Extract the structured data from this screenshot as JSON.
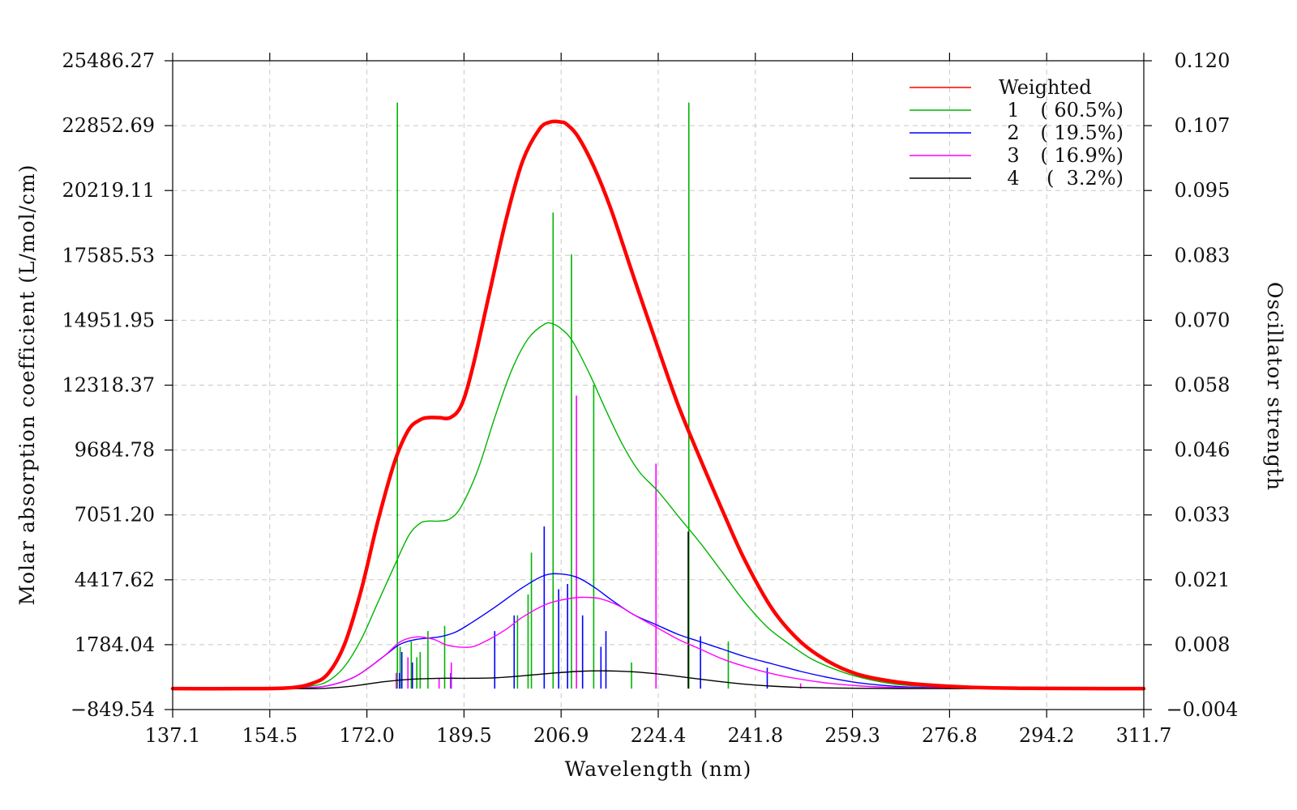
{
  "chart_data": {
    "type": "line",
    "xlabel": "Wavelength (nm)",
    "ylabel": "Molar absorption coefficient (L/mol/cm)",
    "y2label": "Oscillator strength",
    "xlim": [
      137.1,
      311.7
    ],
    "ylim": [
      -849.54,
      25486.27
    ],
    "y2lim": [
      -0.004,
      0.12
    ],
    "xticks": [
      "137.1",
      "154.5",
      "172.0",
      "189.5",
      "206.9",
      "224.4",
      "241.8",
      "259.3",
      "276.8",
      "294.2",
      "311.7"
    ],
    "yticks": [
      "-849.54",
      "1784.04",
      "4417.62",
      "7051.20",
      "9684.78",
      "12318.37",
      "14951.95",
      "17585.53",
      "20219.11",
      "22852.69",
      "25486.27"
    ],
    "y2ticks": [
      "-0.004",
      "0.008",
      "0.021",
      "0.033",
      "0.046",
      "0.058",
      "0.070",
      "0.083",
      "0.095",
      "0.107",
      "0.120"
    ],
    "grid": true,
    "legend_position": "top-right",
    "legend": [
      {
        "name": "Weighted",
        "pct": "",
        "color": "#ff0000"
      },
      {
        "name": "1",
        "pct": "( 60.5%)",
        "color": "#00b400"
      },
      {
        "name": "2",
        "pct": "( 19.5%)",
        "color": "#0000ff"
      },
      {
        "name": "3",
        "pct": "( 16.9%)",
        "color": "#ff00ff"
      },
      {
        "name": "4",
        "pct": "(  3.2%)",
        "color": "#000000"
      }
    ],
    "series": [
      {
        "name": "Weighted",
        "color": "#ff0000",
        "x": [
          137.1,
          150,
          158,
          162,
          165,
          168,
          171,
          174,
          177,
          179.5,
          181.5,
          183,
          185,
          187,
          189,
          191,
          194,
          197,
          200,
          203,
          205,
          206.9,
          208,
          210,
          213,
          216,
          220,
          224.4,
          228,
          232,
          236,
          240,
          245,
          250,
          255,
          260,
          265,
          270,
          280,
          290,
          300,
          311.7
        ],
        "values": [
          0,
          0,
          30,
          200,
          600,
          1800,
          4000,
          6800,
          9200,
          10500,
          10900,
          11000,
          11000,
          11000,
          11500,
          13000,
          16000,
          19000,
          21400,
          22700,
          23000,
          23000,
          22900,
          22400,
          21100,
          19400,
          16700,
          13800,
          11500,
          9300,
          7200,
          5200,
          3200,
          1900,
          1100,
          600,
          350,
          200,
          60,
          15,
          5,
          0
        ]
      },
      {
        "name": "1",
        "color": "#00b400",
        "x": [
          137.1,
          150,
          158,
          162,
          165,
          168,
          171,
          174,
          177,
          179.5,
          181.5,
          183,
          185,
          187,
          189,
          192,
          195,
          198,
          201,
          204,
          205.5,
          207,
          209,
          212,
          215,
          218,
          221,
          224.4,
          228,
          232,
          236,
          240,
          244,
          248,
          252,
          256,
          260,
          265,
          270,
          280,
          290,
          300,
          311.7
        ],
        "values": [
          0,
          0,
          15,
          100,
          300,
          900,
          2000,
          3500,
          5000,
          6200,
          6700,
          6800,
          6800,
          6900,
          7400,
          8900,
          11000,
          12900,
          14200,
          14800,
          14800,
          14600,
          14100,
          12800,
          11300,
          9900,
          8800,
          8000,
          7000,
          5900,
          4700,
          3500,
          2500,
          1800,
          1200,
          800,
          500,
          250,
          120,
          40,
          10,
          3,
          0
        ]
      },
      {
        "name": "2",
        "color": "#0000ff",
        "x": [
          137.1,
          155,
          160,
          165,
          170,
          175,
          178,
          181,
          185,
          188,
          191,
          195,
          200,
          204,
          207,
          210,
          213,
          216,
          220,
          224,
          228,
          232,
          236,
          240,
          245,
          250,
          255,
          260,
          265,
          270,
          280,
          290,
          300,
          311.7
        ],
        "values": [
          0,
          0,
          20,
          120,
          500,
          1300,
          1800,
          2000,
          2100,
          2300,
          2700,
          3300,
          4100,
          4600,
          4650,
          4500,
          4100,
          3600,
          3000,
          2600,
          2200,
          1900,
          1600,
          1300,
          1000,
          700,
          450,
          250,
          130,
          60,
          20,
          5,
          0,
          0
        ]
      },
      {
        "name": "3",
        "color": "#ff00ff",
        "x": [
          137.1,
          155,
          160,
          165,
          170,
          175,
          178,
          181,
          184,
          186,
          188,
          191,
          194,
          197,
          200,
          204,
          207,
          210,
          212,
          214,
          217,
          220,
          224,
          228,
          232,
          236,
          240,
          245,
          250,
          255,
          260,
          265,
          270,
          280,
          290,
          300,
          311.7
        ],
        "values": [
          0,
          0,
          20,
          120,
          500,
          1300,
          1900,
          2100,
          2000,
          1800,
          1700,
          1700,
          2000,
          2400,
          2900,
          3400,
          3600,
          3700,
          3700,
          3650,
          3400,
          3000,
          2500,
          2000,
          1600,
          1200,
          900,
          600,
          380,
          220,
          120,
          60,
          30,
          10,
          3,
          0,
          0
        ]
      },
      {
        "name": "4",
        "color": "#000000",
        "x": [
          137.1,
          160,
          165,
          170,
          175,
          180,
          185,
          190,
          195,
          200,
          205,
          210,
          215,
          220,
          225,
          230,
          235,
          240,
          245,
          250,
          260,
          270,
          280,
          311.7
        ],
        "values": [
          0,
          0,
          20,
          120,
          280,
          380,
          420,
          420,
          440,
          520,
          620,
          700,
          720,
          680,
          580,
          440,
          300,
          180,
          100,
          50,
          15,
          4,
          0,
          0
        ]
      }
    ],
    "sticks": [
      {
        "series": "1",
        "x": [
          177.5,
          178.0,
          180.0,
          181.0,
          181.6,
          183.0,
          186.0,
          199.1,
          201.0,
          201.6,
          205.5,
          208.8,
          212.8,
          219.6,
          229.9,
          237.0
        ],
        "f": [
          0.112,
          0.008,
          0.009,
          0.006,
          0.007,
          0.011,
          0.012,
          0.014,
          0.018,
          0.026,
          0.091,
          0.083,
          0.058,
          0.005,
          0.112,
          0.009
        ]
      },
      {
        "series": "2",
        "x": [
          177.9,
          178.3,
          180.2,
          187.1,
          195.0,
          198.5,
          203.9,
          206.5,
          208.1,
          210.8,
          214.1,
          215.0,
          232.0,
          244.0
        ],
        "f": [
          0.003,
          0.007,
          0.005,
          0.003,
          0.011,
          0.014,
          0.031,
          0.019,
          0.02,
          0.014,
          0.008,
          0.011,
          0.01,
          0.004
        ]
      },
      {
        "series": "3",
        "x": [
          177.3,
          179.4,
          185.0,
          187.2,
          209.7,
          224.0,
          250.0
        ],
        "f": [
          0.003,
          0.006,
          0.002,
          0.005,
          0.056,
          0.043,
          0.001
        ]
      },
      {
        "series": "4",
        "x": [
          229.8
        ],
        "f": [
          0.03
        ]
      }
    ]
  }
}
